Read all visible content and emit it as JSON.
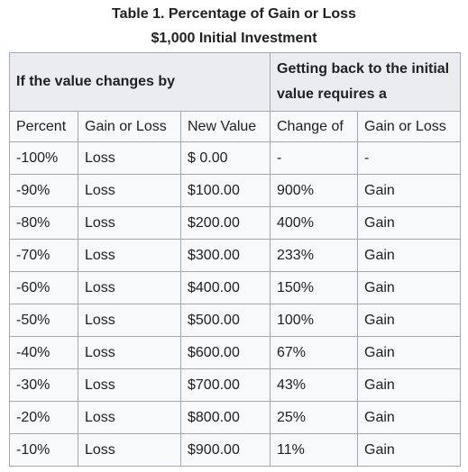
{
  "caption": {
    "line1": "Table 1. Percentage of Gain or Loss",
    "line2": "$1,000 Initial Investment"
  },
  "table": {
    "group_headers": [
      "If the value changes by",
      "Getting back to the initial value requires a"
    ],
    "columns": [
      "Percent",
      "Gain or Loss",
      "New Value",
      "Change of",
      "Gain or Loss"
    ],
    "rows": [
      [
        "-100%",
        "Loss",
        "$ 0.00",
        "-",
        "-"
      ],
      [
        "-90%",
        "Loss",
        "$100.00",
        "900%",
        "Gain"
      ],
      [
        "-80%",
        "Loss",
        "$200.00",
        "400%",
        "Gain"
      ],
      [
        "-70%",
        "Loss",
        "$300.00",
        "233%",
        "Gain"
      ],
      [
        "-60%",
        "Loss",
        "$400.00",
        "150%",
        "Gain"
      ],
      [
        "-50%",
        "Loss",
        "$500.00",
        "100%",
        "Gain"
      ],
      [
        "-40%",
        "Loss",
        "$600.00",
        "67%",
        "Gain"
      ],
      [
        "-30%",
        "Loss",
        "$700.00",
        "43%",
        "Gain"
      ],
      [
        "-20%",
        "Loss",
        "$800.00",
        "25%",
        "Gain"
      ],
      [
        "-10%",
        "Loss",
        "$900.00",
        "11%",
        "Gain"
      ]
    ]
  }
}
